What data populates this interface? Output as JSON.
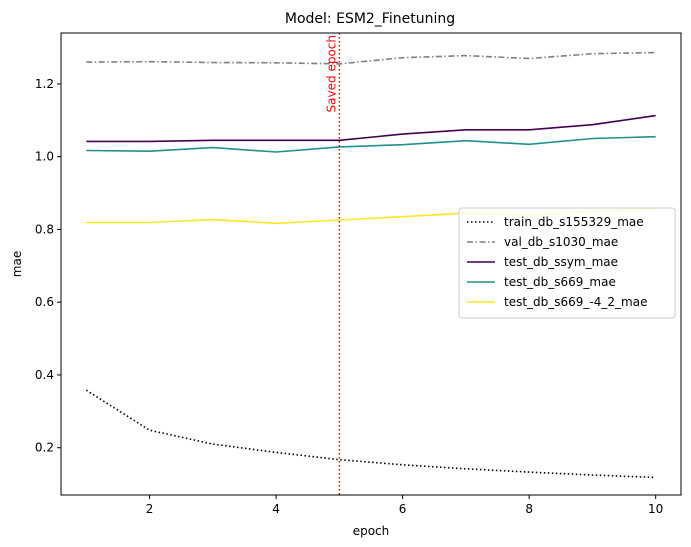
{
  "chart_data": {
    "type": "line",
    "title": "Model: ESM2_Finetuning",
    "xlabel": "epoch",
    "ylabel": "mae",
    "xlim": [
      0.6,
      10.4
    ],
    "ylim": [
      0.07,
      1.34
    ],
    "xticks": [
      2,
      4,
      6,
      8,
      10
    ],
    "yticks": [
      0.2,
      0.4,
      0.6,
      0.8,
      1.0,
      1.2
    ],
    "ytick_labels": [
      "0.2",
      "0.4",
      "0.6",
      "0.8",
      "1.0",
      "1.2"
    ],
    "grid": false,
    "legend_position": "center-right",
    "x": [
      1,
      2,
      3,
      4,
      5,
      6,
      7,
      8,
      9,
      10
    ],
    "series": [
      {
        "name": "train_db_s155329_mae",
        "color": "#000000",
        "style": "dotted",
        "values": [
          0.358,
          0.248,
          0.21,
          0.187,
          0.167,
          0.153,
          0.142,
          0.133,
          0.125,
          0.118
        ]
      },
      {
        "name": "val_db_s1030_mae",
        "color": "#808080",
        "style": "dashdot",
        "values": [
          1.26,
          1.261,
          1.259,
          1.258,
          1.255,
          1.272,
          1.278,
          1.27,
          1.283,
          1.286
        ]
      },
      {
        "name": "test_db_ssym_mae",
        "color": "#440154",
        "style": "solid",
        "values": [
          1.042,
          1.042,
          1.045,
          1.045,
          1.045,
          1.062,
          1.074,
          1.074,
          1.088,
          1.113
        ]
      },
      {
        "name": "test_db_s669_mae",
        "color": "#21918c",
        "style": "solid",
        "values": [
          1.017,
          1.015,
          1.025,
          1.013,
          1.027,
          1.033,
          1.044,
          1.034,
          1.05,
          1.055
        ]
      },
      {
        "name": "test_db_s669_-4_2_mae",
        "color": "#fde725",
        "style": "solid",
        "values": [
          0.819,
          0.819,
          0.827,
          0.817,
          0.826,
          0.835,
          0.845,
          0.84,
          0.85,
          0.856
        ]
      }
    ],
    "annotations": [
      {
        "type": "vline",
        "x": 5,
        "color": "#ff0000",
        "style": "dotted",
        "label": "Saved epoch"
      }
    ]
  }
}
